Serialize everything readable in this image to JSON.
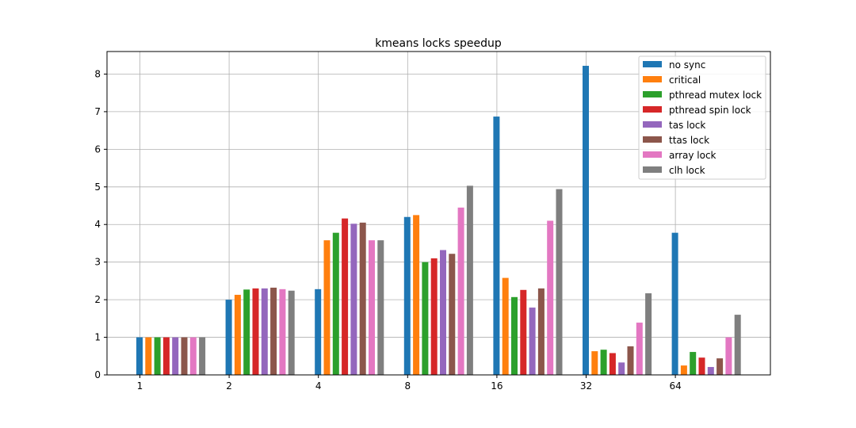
{
  "chart_data": {
    "type": "bar",
    "title": "kmeans locks speedup",
    "xlabel": "",
    "ylabel": "",
    "categories": [
      "1",
      "2",
      "4",
      "8",
      "16",
      "32",
      "64"
    ],
    "ylim": [
      0,
      8.6
    ],
    "yticks": [
      "0",
      "1",
      "2",
      "3",
      "4",
      "5",
      "6",
      "7",
      "8"
    ],
    "grid": true,
    "legend_position": "top-right",
    "series": [
      {
        "name": "no sync",
        "color": "#1f77b4",
        "values": [
          1.0,
          2.0,
          2.28,
          4.2,
          6.87,
          8.22,
          3.78
        ]
      },
      {
        "name": "critical",
        "color": "#ff7f0e",
        "values": [
          1.0,
          2.13,
          3.58,
          4.25,
          2.58,
          0.63,
          0.25
        ]
      },
      {
        "name": "pthread mutex lock",
        "color": "#2ca02c",
        "values": [
          1.0,
          2.27,
          3.78,
          3.0,
          2.07,
          0.67,
          0.61
        ]
      },
      {
        "name": "pthread spin lock",
        "color": "#d62728",
        "values": [
          1.0,
          2.3,
          4.16,
          3.1,
          2.26,
          0.58,
          0.46
        ]
      },
      {
        "name": "tas lock",
        "color": "#9467bd",
        "values": [
          1.0,
          2.3,
          4.02,
          3.32,
          1.79,
          0.33,
          0.21
        ]
      },
      {
        "name": "ttas lock",
        "color": "#8c564b",
        "values": [
          1.0,
          2.32,
          4.05,
          3.22,
          2.3,
          0.76,
          0.44
        ]
      },
      {
        "name": "array lock",
        "color": "#e377c2",
        "values": [
          1.0,
          2.28,
          3.58,
          4.45,
          4.1,
          1.39,
          1.0
        ]
      },
      {
        "name": "clh lock",
        "color": "#7f7f7f",
        "values": [
          1.0,
          2.24,
          3.58,
          5.03,
          4.94,
          2.17,
          1.6
        ]
      }
    ]
  }
}
